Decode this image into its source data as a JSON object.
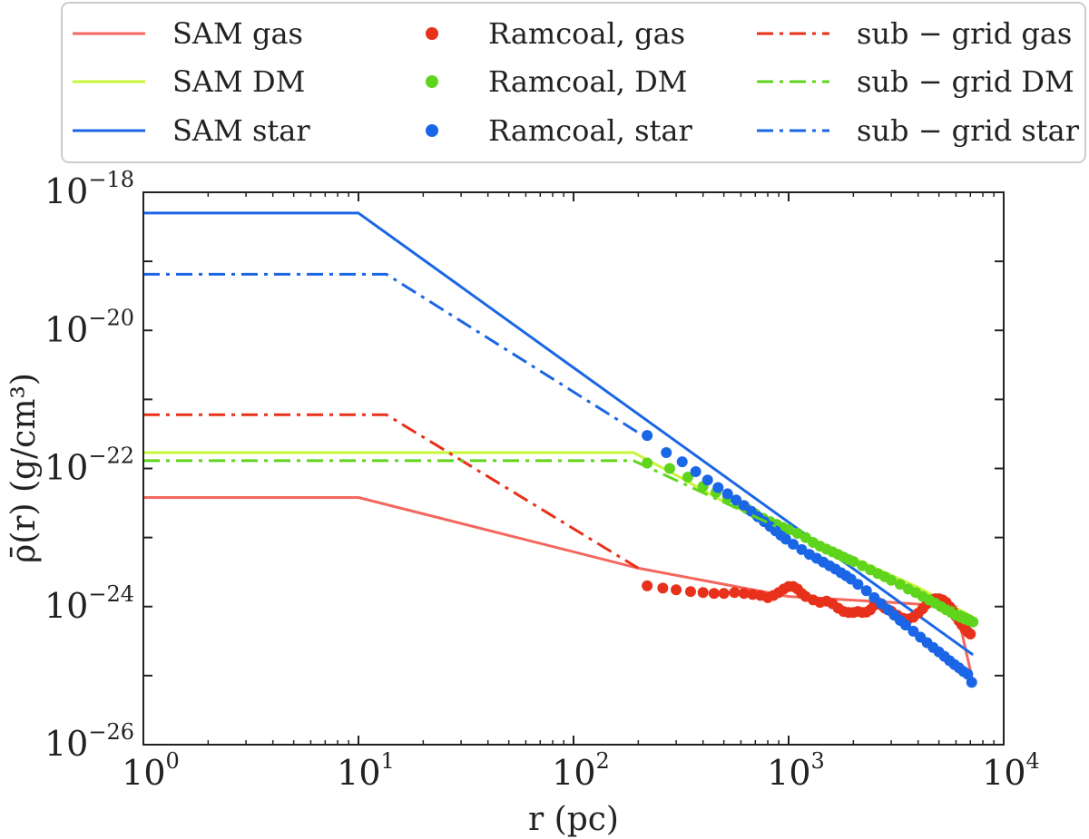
{
  "chart_data": {
    "type": "line",
    "xscale": "log",
    "yscale": "log",
    "xlim": [
      1,
      10000
    ],
    "ylim": [
      1e-26,
      1e-18
    ],
    "xlabel": "r (pc)",
    "ylabel": "ρ̄(r) (g/cm³)",
    "xticks": [
      {
        "base": "10",
        "exp": "0"
      },
      {
        "base": "10",
        "exp": "1"
      },
      {
        "base": "10",
        "exp": "2"
      },
      {
        "base": "10",
        "exp": "3"
      },
      {
        "base": "10",
        "exp": "4"
      }
    ],
    "yticks": [
      {
        "base": "10",
        "exp": "−26"
      },
      {
        "base": "10",
        "exp": "−24"
      },
      {
        "base": "10",
        "exp": "−22"
      },
      {
        "base": "10",
        "exp": "−20"
      },
      {
        "base": "10",
        "exp": "−18"
      }
    ],
    "legend_position": "top, above plot, 3 columns",
    "series": [
      {
        "name": "SAM gas",
        "style": "line",
        "color": "#f4675f",
        "x": [
          1,
          10,
          200,
          1000,
          3000,
          6000,
          7200
        ],
        "y": [
          3.8e-23,
          3.8e-23,
          3.6e-24,
          1.4e-24,
          1.15e-24,
          1e-24,
          8e-26
        ]
      },
      {
        "name": "SAM DM",
        "style": "line",
        "color": "#c7f53a",
        "x": [
          1,
          190,
          300,
          500,
          1000,
          2000,
          4000,
          7200
        ],
        "y": [
          1.7e-22,
          1.7e-22,
          8e-23,
          3.3e-23,
          1.2e-23,
          5e-24,
          1.9e-24,
          7e-25
        ]
      },
      {
        "name": "SAM star",
        "style": "line",
        "color": "#1a66e6",
        "x": [
          1,
          10,
          7200
        ],
        "y": [
          5e-19,
          5e-19,
          2e-25
        ]
      },
      {
        "name": "Ramcoal, gas",
        "style": "points",
        "color": "#e8311a",
        "x": [
          220,
          260,
          300,
          350,
          400,
          450,
          500,
          560,
          620,
          680,
          740,
          800,
          850,
          900,
          950,
          1000,
          1050,
          1100,
          1150,
          1200,
          1300,
          1400,
          1500,
          1600,
          1700,
          1800,
          1900,
          2000,
          2100,
          2200,
          2300,
          2400,
          2500,
          2600,
          2700,
          2800,
          2900,
          3000,
          3200,
          3400,
          3600,
          3800,
          4000,
          4200,
          4400,
          4600,
          4800,
          5000,
          5200,
          5400,
          5600,
          5800,
          6000,
          6200,
          6400,
          6600,
          6800,
          7000
        ],
        "y": [
          2e-24,
          1.85e-24,
          1.75e-24,
          1.65e-24,
          1.6e-24,
          1.55e-24,
          1.55e-24,
          1.6e-24,
          1.55e-24,
          1.5e-24,
          1.45e-24,
          1.35e-24,
          1.45e-24,
          1.6e-24,
          1.8e-24,
          1.95e-24,
          1.95e-24,
          1.8e-24,
          1.55e-24,
          1.4e-24,
          1.25e-24,
          1.15e-24,
          1.2e-24,
          1.1e-24,
          9.5e-25,
          8.5e-25,
          8.2e-25,
          8.2e-25,
          8.5e-25,
          8.2e-25,
          8.3e-25,
          9e-25,
          1.05e-24,
          1.15e-24,
          1.05e-24,
          9.5e-25,
          9e-25,
          8.6e-25,
          7.5e-25,
          6.8e-25,
          6.6e-25,
          7e-25,
          8e-25,
          9.3e-25,
          1.1e-24,
          1.25e-24,
          1.3e-24,
          1.3e-24,
          1.25e-24,
          1.15e-24,
          1e-24,
          8.5e-25,
          7.2e-25,
          6.2e-25,
          5.4e-25,
          4.8e-25,
          4.3e-25,
          4e-25
        ]
      },
      {
        "name": "Ramcoal, DM",
        "style": "points",
        "color": "#5fd41c",
        "x": [
          220,
          280,
          340,
          400,
          460,
          520,
          580,
          640,
          700,
          760,
          820,
          880,
          940,
          1000,
          1100,
          1200,
          1300,
          1400,
          1500,
          1600,
          1700,
          1800,
          1900,
          2000,
          2200,
          2400,
          2600,
          2800,
          3000,
          3300,
          3600,
          3900,
          4200,
          4500,
          4800,
          5100,
          5400,
          5700,
          6000,
          6300,
          6600,
          6900,
          7200
        ],
        "y": [
          1.2e-22,
          1e-22,
          7.5e-23,
          5.5e-23,
          4.5e-23,
          3.7e-23,
          3.1e-23,
          2.6e-23,
          2.2e-23,
          1.9e-23,
          1.7e-23,
          1.55e-23,
          1.4e-23,
          1.3e-23,
          1.15e-23,
          1e-23,
          8.5e-24,
          7.5e-24,
          6.8e-24,
          6.2e-24,
          5.7e-24,
          5.2e-24,
          4.8e-24,
          4.5e-24,
          3.9e-24,
          3.4e-24,
          3e-24,
          2.7e-24,
          2.4e-24,
          2.1e-24,
          1.8e-24,
          1.6e-24,
          1.4e-24,
          1.25e-24,
          1.12e-24,
          1e-24,
          9e-25,
          8.2e-25,
          7.5e-25,
          7e-25,
          6.6e-25,
          6.3e-25,
          6e-25
        ]
      },
      {
        "name": "Ramcoal, star",
        "style": "points",
        "color": "#1a66e6",
        "x": [
          220,
          270,
          320,
          370,
          420,
          470,
          520,
          570,
          620,
          670,
          720,
          770,
          820,
          870,
          920,
          970,
          1050,
          1150,
          1250,
          1350,
          1450,
          1550,
          1650,
          1750,
          1850,
          1950,
          2100,
          2300,
          2500,
          2700,
          2900,
          3100,
          3300,
          3500,
          3800,
          4100,
          4400,
          4700,
          5000,
          5300,
          5600,
          5900,
          6200,
          6500,
          6800,
          7100
        ],
        "y": [
          3e-22,
          1.7e-22,
          1.25e-22,
          9e-23,
          6.8e-23,
          5.3e-23,
          4.3e-23,
          3.5e-23,
          2.9e-23,
          2.4e-23,
          2e-23,
          1.7e-23,
          1.45e-23,
          1.25e-23,
          1.08e-23,
          9.5e-24,
          8e-24,
          6.7e-24,
          5.7e-24,
          5e-24,
          4.4e-24,
          3.9e-24,
          3.5e-24,
          3.1e-24,
          2.8e-24,
          2.5e-24,
          2.1e-24,
          1.7e-24,
          1.35e-24,
          1.1e-24,
          9e-25,
          7.5e-25,
          6.3e-25,
          5.4e-25,
          4.4e-25,
          3.6e-25,
          3e-25,
          2.55e-25,
          2.2e-25,
          1.9e-25,
          1.65e-25,
          1.45e-25,
          1.3e-25,
          1.15e-25,
          1.05e-25,
          8e-26
        ]
      },
      {
        "name": "sub − grid gas",
        "style": "dashdot",
        "color": "#e8311a",
        "x": [
          1,
          13.5,
          200
        ],
        "y": [
          6e-22,
          6e-22,
          3.6e-24
        ]
      },
      {
        "name": "sub − grid DM",
        "style": "dashdot",
        "color": "#5fd41c",
        "x": [
          1,
          190,
          7200
        ],
        "y": [
          1.3e-22,
          1.3e-22,
          7e-25
        ]
      },
      {
        "name": "sub − grid star",
        "style": "dashdot",
        "color": "#1a66e6",
        "x": [
          1,
          13.5,
          210
        ],
        "y": [
          6.5e-20,
          6.5e-20,
          3e-22
        ]
      }
    ]
  }
}
